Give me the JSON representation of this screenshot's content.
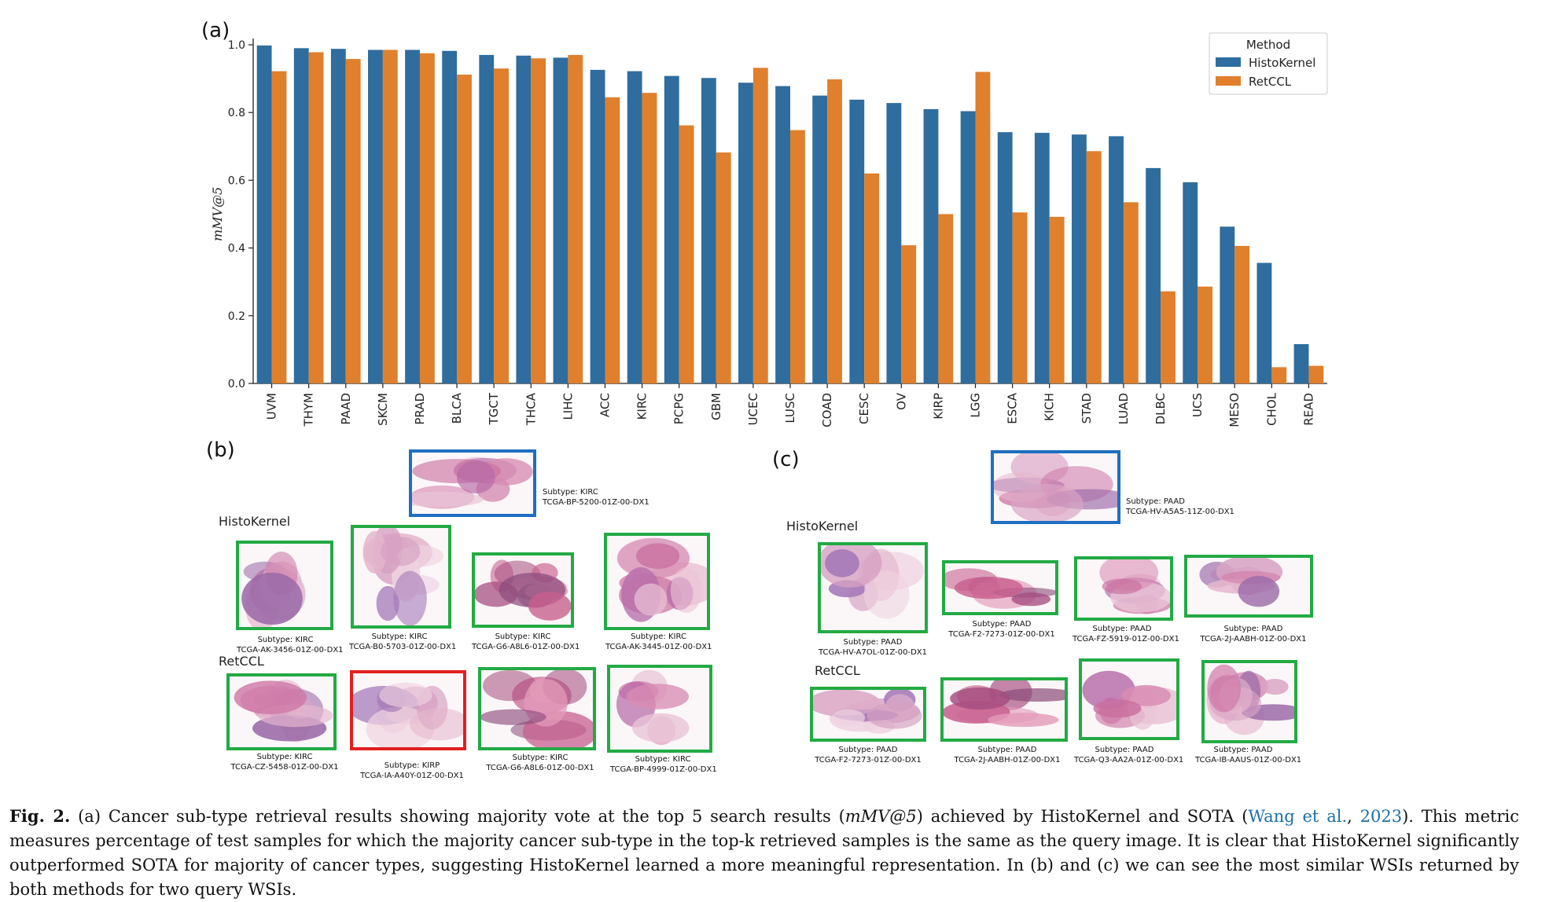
{
  "panels": {
    "a": "(a)",
    "b": "(b)",
    "c": "(c)"
  },
  "chart_data": {
    "type": "bar",
    "ylabel": "mMV@5",
    "ylim": [
      0,
      1.0
    ],
    "yticks": [
      "0.0",
      "0.2",
      "0.4",
      "0.6",
      "0.8",
      "1.0"
    ],
    "legend_title": "Method",
    "legend_placement": "top-right",
    "grid": false,
    "categories": [
      "UVM",
      "THYM",
      "PAAD",
      "SKCM",
      "PRAD",
      "BLCA",
      "TGCT",
      "THCA",
      "LIHC",
      "ACC",
      "KIRC",
      "PCPG",
      "GBM",
      "UCEC",
      "LUSC",
      "COAD",
      "CESC",
      "OV",
      "KIRP",
      "LGG",
      "ESCA",
      "KICH",
      "STAD",
      "LUAD",
      "DLBC",
      "UCS",
      "MESO",
      "CHOL",
      "READ"
    ],
    "series": [
      {
        "name": "HistoKernel",
        "color": "#2e6d9e",
        "values": [
          0.998,
          0.99,
          0.988,
          0.985,
          0.985,
          0.982,
          0.97,
          0.968,
          0.962,
          0.926,
          0.922,
          0.908,
          0.902,
          0.888,
          0.878,
          0.85,
          0.838,
          0.828,
          0.81,
          0.804,
          0.742,
          0.74,
          0.735,
          0.73,
          0.636,
          0.594,
          0.463,
          0.356,
          0.116
        ]
      },
      {
        "name": "RetCCL",
        "color": "#e07f2c",
        "values": [
          0.922,
          0.978,
          0.958,
          0.985,
          0.975,
          0.912,
          0.93,
          0.96,
          0.97,
          0.845,
          0.858,
          0.762,
          0.682,
          0.932,
          0.748,
          0.898,
          0.62,
          0.408,
          0.5,
          0.92,
          0.505,
          0.492,
          0.686,
          0.535,
          0.272,
          0.286,
          0.406,
          0.048,
          0.052
        ]
      }
    ]
  },
  "panel_b": {
    "query": {
      "subtype": "Subtype: KIRC",
      "id": "TCGA-BP-5200-01Z-00-DX1"
    },
    "histokernel_label": "HistoKernel",
    "retccl_label": "RetCCL",
    "histokernel": [
      {
        "subtype": "Subtype: KIRC",
        "id": "TCGA-AK-3456-01Z-00-DX1"
      },
      {
        "subtype": "Subtype: KIRC",
        "id": "TCGA-B0-5703-01Z-00-DX1"
      },
      {
        "subtype": "Subtype: KIRC",
        "id": "TCGA-G6-A8L6-01Z-00-DX1"
      },
      {
        "subtype": "Subtype: KIRC",
        "id": "TCGA-AK-3445-01Z-00-DX1"
      }
    ],
    "retccl": [
      {
        "subtype": "Subtype: KIRC",
        "id": "TCGA-CZ-5458-01Z-00-DX1"
      },
      {
        "subtype": "Subtype: KIRP",
        "id": "TCGA-IA-A40Y-01Z-00-DX1"
      },
      {
        "subtype": "Subtype: KIRC",
        "id": "TCGA-G6-A8L6-01Z-00-DX1"
      },
      {
        "subtype": "Subtype: KIRC",
        "id": "TCGA-BP-4999-01Z-00-DX1"
      }
    ]
  },
  "panel_c": {
    "query": {
      "subtype": "Subtype: PAAD",
      "id": "TCGA-HV-A5A5-11Z-00-DX1"
    },
    "histokernel_label": "HistoKernel",
    "retccl_label": "RetCCL",
    "histokernel": [
      {
        "subtype": "Subtype: PAAD",
        "id": "TCGA-HV-A7OL-01Z-00-DX1"
      },
      {
        "subtype": "Subtype: PAAD",
        "id": "TCGA-F2-7273-01Z-00-DX1"
      },
      {
        "subtype": "Subtype: PAAD",
        "id": "TCGA-FZ-5919-01Z-00-DX1"
      },
      {
        "subtype": "Subtype: PAAD",
        "id": "TCGA-2J-AABH-01Z-00-DX1"
      }
    ],
    "retccl": [
      {
        "subtype": "Subtype: PAAD",
        "id": "TCGA-F2-7273-01Z-00-DX1"
      },
      {
        "subtype": "Subtype: PAAD",
        "id": "TCGA-2J-AABH-01Z-00-DX1"
      },
      {
        "subtype": "Subtype: PAAD",
        "id": "TCGA-Q3-AA2A-01Z-00-DX1"
      },
      {
        "subtype": "Subtype: PAAD",
        "id": "TCGA-IB-AAUS-01Z-00-DX1"
      }
    ]
  },
  "caption": {
    "fig_label": "Fig. 2.",
    "text_1": " (a) Cancer sub-type retrieval results showing majority vote at the top 5 search results (",
    "metric": "mMV@5",
    "text_2": ") achieved by HistoKernel and SOTA (",
    "ref_authors": "Wang et al.",
    "ref_sep": ", ",
    "ref_year": "2023",
    "text_3": "). This metric measures percentage of test samples for which the majority cancer sub-type in the top-k retrieved samples is the same as the query image. It is clear that HistoKernel significantly outperformed SOTA for majority of cancer types, suggesting HistoKernel learned a more meaningful representation. In (b) and (c) we can see the most similar WSIs returned by both methods for two query WSIs."
  },
  "colors": {
    "query_border": "#1f6fc0",
    "correct_border": "#22aa44",
    "wrong_border": "#e02020"
  }
}
